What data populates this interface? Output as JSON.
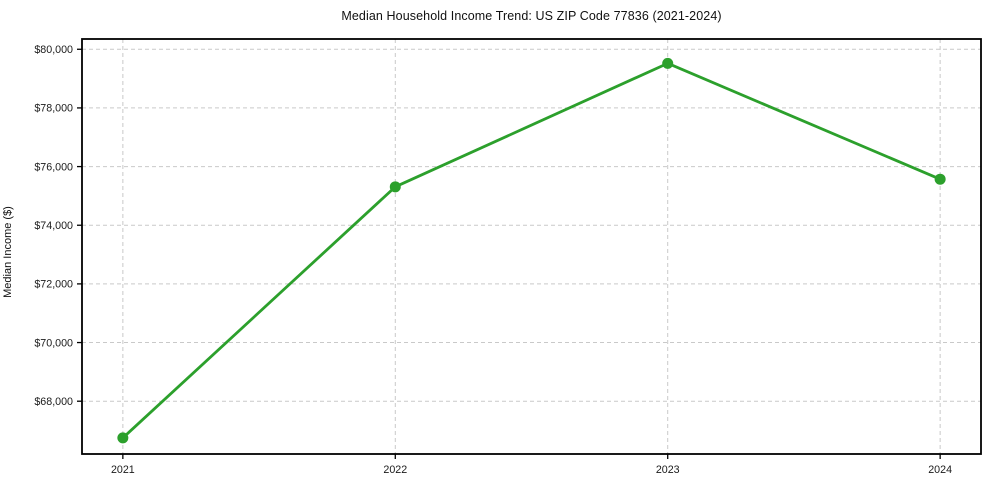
{
  "chart_data": {
    "type": "line",
    "title": "Median Household Income Trend: US ZIP Code 77836 (2021-2024)",
    "xlabel": "",
    "ylabel": "Median Income ($)",
    "x": [
      2021,
      2022,
      2023,
      2024
    ],
    "x_tick_labels": [
      "2021",
      "2022",
      "2023",
      "2024"
    ],
    "series": [
      {
        "name": "Median Household Income",
        "values": [
          66750,
          75310,
          79520,
          75570
        ]
      }
    ],
    "y_ticks": [
      68000,
      70000,
      72000,
      74000,
      76000,
      78000,
      80000
    ],
    "y_tick_labels": [
      "$68,000",
      "$70,000",
      "$72,000",
      "$74,000",
      "$76,000",
      "$78,000",
      "$80,000"
    ],
    "ylim": [
      66200,
      80350
    ],
    "xlim": [
      2020.85,
      2024.15
    ],
    "grid": true,
    "legend": "none",
    "colors": {
      "line": "#2ca02c",
      "marker": "#2ca02c",
      "grid": "#c9c9c9",
      "spine": "#000000",
      "tick_text": "#1a1a1a",
      "background": "#ffffff"
    }
  }
}
